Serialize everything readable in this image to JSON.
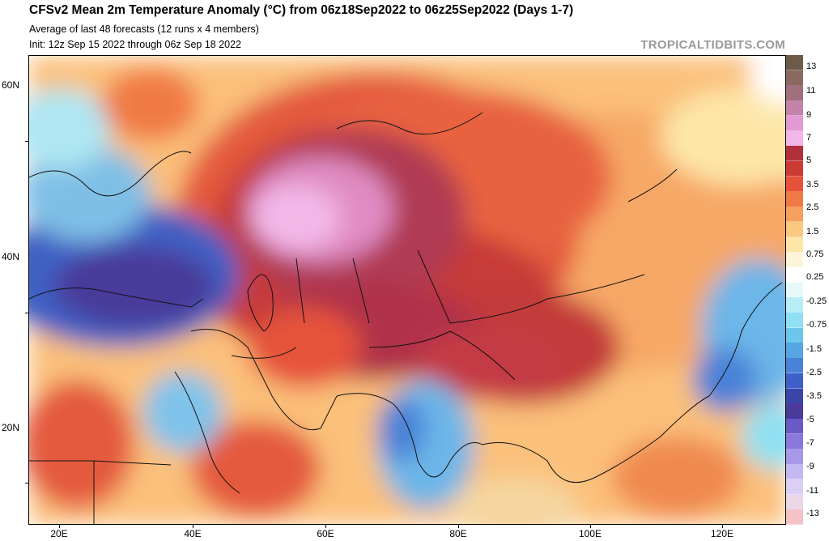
{
  "header": {
    "title": "CFSv2 Mean 2m Temperature Anomaly (°C) from 06z18Sep2022 to 06z25Sep2022 (Days 1-7)",
    "subtitle1": "Average of last 48 forecasts (12 runs x 4 members)",
    "subtitle2": "Init: 12z Sep 15 2022 through 06z Sep 18 2022",
    "brand": "TROPICALTIDBITS.COM"
  },
  "axes": {
    "lat_labels": [
      "60N",
      "40N",
      "20N"
    ],
    "lon_labels": [
      "20E",
      "40E",
      "60E",
      "80E",
      "100E",
      "120E"
    ]
  },
  "colorbar": {
    "labels": [
      "13",
      "11",
      "9",
      "7",
      "5",
      "3.5",
      "2.5",
      "1.5",
      "0.75",
      "0.25",
      "-0.25",
      "-0.75",
      "-1.5",
      "-2.5",
      "-3.5",
      "-5",
      "-7",
      "-9",
      "-11",
      "-13"
    ],
    "colors": [
      "#6e5a48",
      "#8a6a5e",
      "#a0707e",
      "#c483a8",
      "#e39ad4",
      "#f2b6e8",
      "#b0303c",
      "#cc3a34",
      "#e6533a",
      "#f07a45",
      "#f5a05e",
      "#fac87f",
      "#fde6a8",
      "#fdf5d8",
      "#ffffff",
      "#e6f9fb",
      "#b7eef6",
      "#8fe0f2",
      "#6cc8ea",
      "#55a6e2",
      "#4a82d8",
      "#3e5fc8",
      "#3a45a8",
      "#4a3a9a",
      "#6a5ac6",
      "#8b78dc",
      "#a898e8",
      "#c3b8f0",
      "#dccff6",
      "#ebd6e8",
      "#f4c3c8"
    ]
  }
}
